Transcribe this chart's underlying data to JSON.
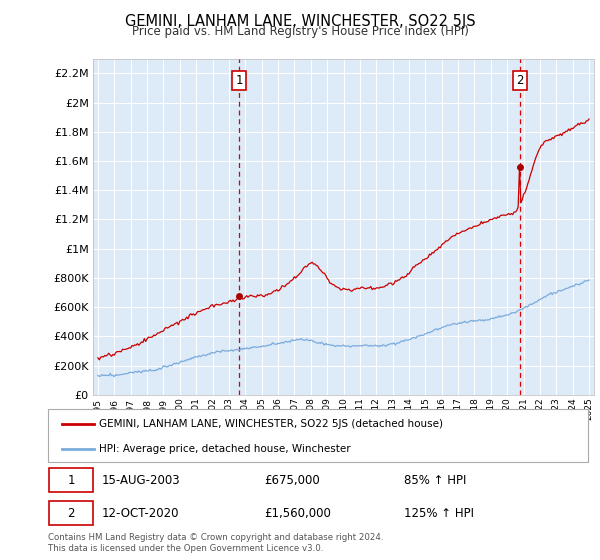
{
  "title": "GEMINI, LANHAM LANE, WINCHESTER, SO22 5JS",
  "subtitle": "Price paid vs. HM Land Registry's House Price Index (HPI)",
  "legend_line1": "GEMINI, LANHAM LANE, WINCHESTER, SO22 5JS (detached house)",
  "legend_line2": "HPI: Average price, detached house, Winchester",
  "annotation1_date": "15-AUG-2003",
  "annotation1_price": "£675,000",
  "annotation1_hpi": "85% ↑ HPI",
  "annotation1_year": 2003.62,
  "annotation1_value": 675000,
  "annotation2_date": "12-OCT-2020",
  "annotation2_price": "£1,560,000",
  "annotation2_hpi": "125% ↑ HPI",
  "annotation2_year": 2020.79,
  "annotation2_value": 1560000,
  "footer": "Contains HM Land Registry data © Crown copyright and database right 2024.\nThis data is licensed under the Open Government Licence v3.0.",
  "ylim": [
    0,
    2300000
  ],
  "yticks": [
    0,
    200000,
    400000,
    600000,
    800000,
    1000000,
    1200000,
    1400000,
    1600000,
    1800000,
    2000000,
    2200000
  ],
  "background_color": "#ddeaf7",
  "grid_color": "#ffffff",
  "red_line_color": "#cc0000",
  "blue_line_color": "#7aabdc",
  "vline_color": "#dd0000"
}
